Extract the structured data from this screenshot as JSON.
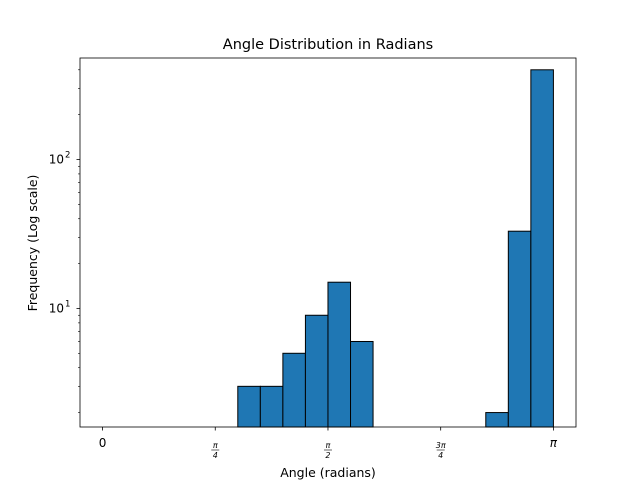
{
  "chart_data": {
    "type": "bar",
    "title": "Angle Distribution in Radians",
    "xlabel": "Angle (radians)",
    "ylabel": "Frequency (Log scale)",
    "yscale": "log",
    "xlim": [
      -0.157,
      3.299
    ],
    "ylim": [
      1.6,
      480
    ],
    "bar_color": "#1f77b4",
    "edge_color": "#000000",
    "x_ticks": [
      {
        "value": 0,
        "label": "0",
        "num": "",
        "den": ""
      },
      {
        "value": 0.7854,
        "label": "",
        "num": "π",
        "den": "4"
      },
      {
        "value": 1.5708,
        "label": "",
        "num": "π",
        "den": "2"
      },
      {
        "value": 2.3562,
        "label": "",
        "num": "3π",
        "den": "4"
      },
      {
        "value": 3.1416,
        "label": "π",
        "num": "",
        "den": ""
      }
    ],
    "y_ticks": [
      {
        "value": 10,
        "base": "10",
        "exp": "1"
      },
      {
        "value": 100,
        "base": "10",
        "exp": "2"
      }
    ],
    "bins": [
      {
        "x0": 0.9425,
        "x1": 1.0996,
        "value": 3
      },
      {
        "x0": 1.0996,
        "x1": 1.2566,
        "value": 3
      },
      {
        "x0": 1.2566,
        "x1": 1.4137,
        "value": 5
      },
      {
        "x0": 1.4137,
        "x1": 1.5708,
        "value": 9
      },
      {
        "x0": 1.5708,
        "x1": 1.7279,
        "value": 15
      },
      {
        "x0": 1.7279,
        "x1": 1.885,
        "value": 6
      },
      {
        "x0": 2.6704,
        "x1": 2.8274,
        "value": 2
      },
      {
        "x0": 2.8274,
        "x1": 2.9845,
        "value": 33
      },
      {
        "x0": 2.9845,
        "x1": 3.1416,
        "value": 400
      }
    ]
  }
}
